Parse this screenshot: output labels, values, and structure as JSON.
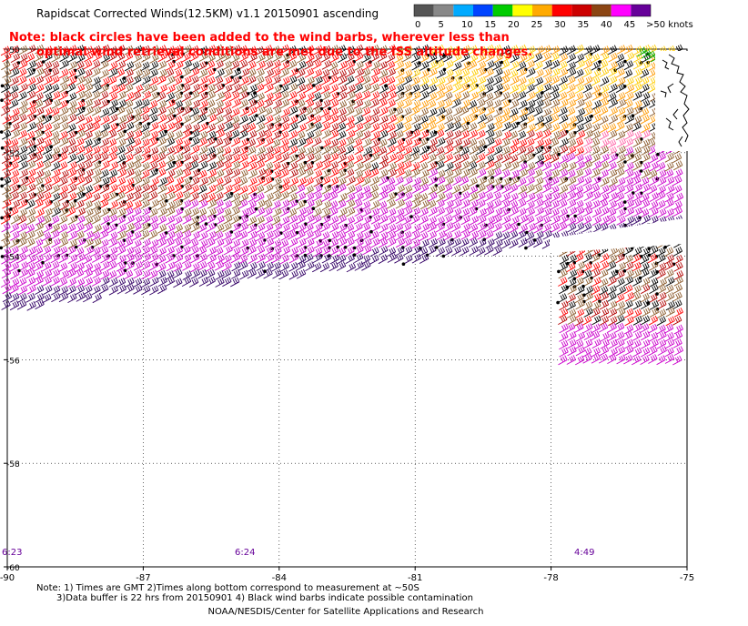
{
  "header": {
    "title": "Rapidscat Corrected Winds(12.5KM) v1.1 20150901 ascending",
    "note_line1": "Note: black circles have been added to the wind barbs, wherever less than",
    "note_line2": "optimal wind retrieval conditions are met due to the ISS altitude changes."
  },
  "colorbar": {
    "labels": [
      "0",
      "5",
      "10",
      "15",
      "20",
      "25",
      "30",
      "35",
      "40",
      "45",
      ">50 knots"
    ],
    "colors": [
      "#555555",
      "#888888",
      "#00aaff",
      "#0044ff",
      "#00cc00",
      "#ffff00",
      "#ffaa00",
      "#ff0000",
      "#cc0000",
      "#8b4513",
      "#ff00ff",
      "#660099"
    ]
  },
  "map": {
    "lon_ticks": [
      "-90",
      "-87",
      "-84",
      "-81",
      "-78",
      "-75"
    ],
    "lat_ticks": [
      "-50",
      "-52",
      "-54",
      "-56",
      "-58",
      "-60"
    ],
    "time_labels": [
      "6:23",
      "6:24",
      "4:49"
    ],
    "colors": {
      "black": "#000000",
      "red": "#ff0000",
      "darkred": "#b30000",
      "brown": "#8b5a2b",
      "orange": "#ff9900",
      "yellow": "#ffcc00",
      "magenta": "#cc00cc",
      "purple": "#330066",
      "pink": "#ff66aa",
      "green": "#00aa00",
      "time": "#660099"
    }
  },
  "footer": {
    "line1": "Note: 1) Times are GMT 2)Times along bottom correspond to measurement at ~50S",
    "line2": "3)Data buffer is 22 hrs from 20150901 4) Black wind barbs indicate possible contamination",
    "line3": "NOAA/NESDIS/Center for Satellite Applications and Research"
  }
}
